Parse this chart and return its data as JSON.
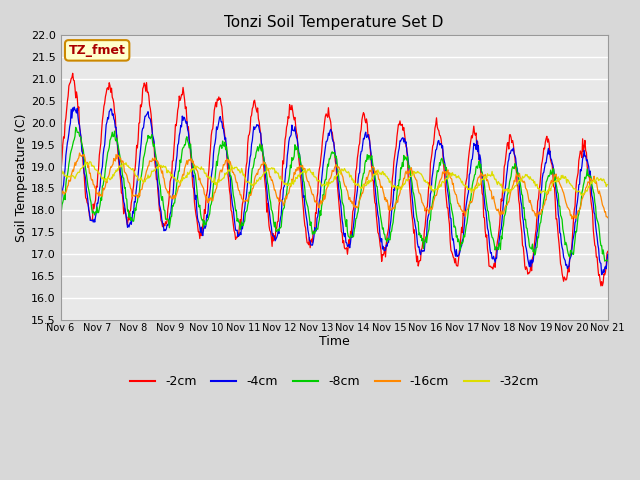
{
  "title": "Tonzi Soil Temperature Set D",
  "xlabel": "Time",
  "ylabel": "Soil Temperature (C)",
  "ylim": [
    15.5,
    22.0
  ],
  "xlim": [
    0,
    15
  ],
  "figure_bg": "#d8d8d8",
  "plot_bg": "#e8e8e8",
  "grid_color": "white",
  "annotation_text": "TZ_fmet",
  "annotation_bg": "#ffffcc",
  "annotation_border": "#cc8800",
  "annotation_text_color": "#aa0000",
  "series_colors": [
    "#ff0000",
    "#0000ee",
    "#00cc00",
    "#ff8800",
    "#dddd00"
  ],
  "series_labels": [
    "-2cm",
    "-4cm",
    "-8cm",
    "-16cm",
    "-32cm"
  ],
  "xtick_labels": [
    "Nov 6",
    "Nov 7",
    "Nov 8",
    "Nov 9",
    "Nov 10",
    "Nov 11",
    "Nov 12",
    "Nov 13",
    "Nov 14",
    "Nov 15",
    "Nov 16",
    "Nov 17",
    "Nov 18",
    "Nov 19",
    "Nov 20",
    "Nov 21"
  ],
  "n_days": 15,
  "ppd": 48,
  "base_2cm": 19.5,
  "trend_2cm": -0.11,
  "amp_2cm": 1.55,
  "phase_2cm": 0.5,
  "base_4cm": 19.1,
  "trend_4cm": -0.08,
  "amp_4cm": 1.3,
  "phase_4cm": 0.85,
  "base_8cm": 18.9,
  "trend_8cm": -0.07,
  "amp_8cm": 0.95,
  "phase_8cm": 1.3,
  "base_16cm": 18.85,
  "trend_16cm": -0.04,
  "amp_16cm": 0.45,
  "phase_16cm": 2.0,
  "base_32cm": 18.92,
  "trend_32cm": -0.025,
  "amp_32cm": 0.18,
  "phase_32cm": 3.2
}
